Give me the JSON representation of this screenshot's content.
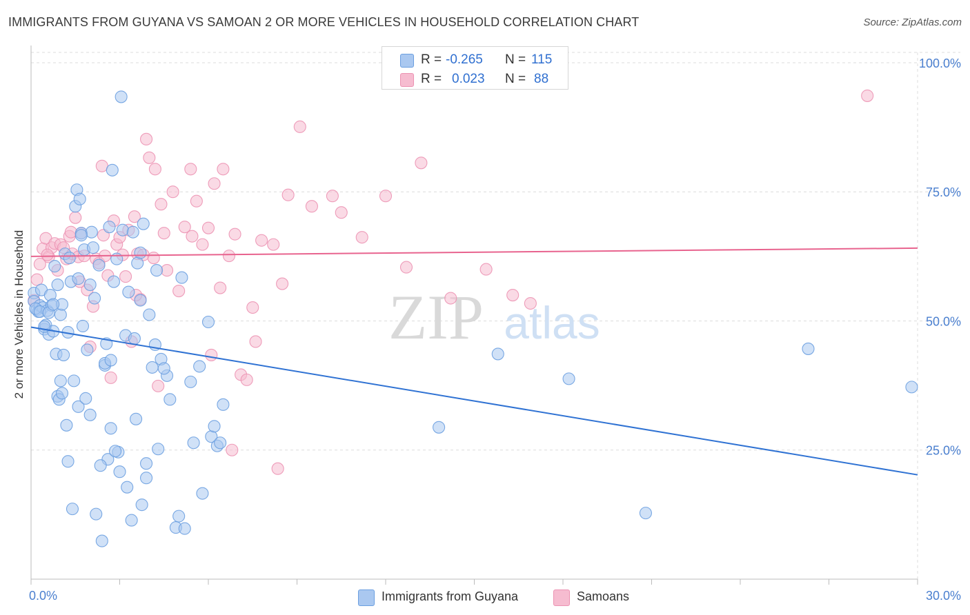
{
  "title": "IMMIGRANTS FROM GUYANA VS SAMOAN 2 OR MORE VEHICLES IN HOUSEHOLD CORRELATION CHART",
  "source": "Source: ZipAtlas.com",
  "watermark": {
    "zip": "ZIP",
    "atlas": "atlas"
  },
  "colors": {
    "blue_fill": "#aac8f0",
    "blue_stroke": "#6a9ee0",
    "blue_line": "#2f72d3",
    "pink_fill": "#f6bcd0",
    "pink_stroke": "#ec92b2",
    "pink_line": "#e8638e",
    "tick_label": "#4a7fcf",
    "grid": "#dcdcdc"
  },
  "legend_top": {
    "rows": [
      {
        "r_label": "R =",
        "r_value": "-0.265",
        "n_label": "N =",
        "n_value": "115",
        "color": "blue"
      },
      {
        "r_label": "R =",
        "r_value": "0.023",
        "n_label": "N =",
        "n_value": "88",
        "color": "pink"
      }
    ]
  },
  "legend_bottom": [
    {
      "label": "Immigrants from Guyana",
      "color": "blue"
    },
    {
      "label": "Samoans",
      "color": "pink"
    }
  ],
  "chart_data": {
    "type": "scatter",
    "title": "IMMIGRANTS FROM GUYANA VS SAMOAN 2 OR MORE VEHICLES IN HOUSEHOLD CORRELATION CHART",
    "xlabel": "",
    "ylabel": "2 or more Vehicles in Household",
    "xlim": [
      0,
      30
    ],
    "ylim": [
      0,
      102
    ],
    "x_tick_labels": [
      "0.0%",
      "30.0%"
    ],
    "y_ticks": [
      25,
      50,
      75,
      100
    ],
    "y_tick_labels": [
      "25.0%",
      "50.0%",
      "75.0%",
      "100.0%"
    ],
    "grid": true,
    "legend_position": "top-center",
    "series": [
      {
        "name": "Immigrants from Guyana",
        "color": "#6a9ee0",
        "trend": {
          "x": [
            0,
            30
          ],
          "y": [
            48.8,
            20.2
          ]
        },
        "points": [
          [
            0.1,
            55.4
          ],
          [
            0.1,
            53.8
          ],
          [
            0.2,
            52.2
          ],
          [
            0.25,
            51.8
          ],
          [
            0.3,
            53
          ],
          [
            0.35,
            56
          ],
          [
            0.4,
            52.6
          ],
          [
            0.45,
            48.4
          ],
          [
            0.5,
            49.2
          ],
          [
            0.55,
            52
          ],
          [
            0.6,
            47.4
          ],
          [
            0.65,
            55
          ],
          [
            0.7,
            53
          ],
          [
            0.75,
            48
          ],
          [
            0.8,
            60.6
          ],
          [
            0.85,
            43.6
          ],
          [
            0.9,
            35.4
          ],
          [
            0.95,
            34.8
          ],
          [
            1.0,
            51.2
          ],
          [
            1.05,
            53.2
          ],
          [
            1.1,
            43.4
          ],
          [
            1.15,
            63
          ],
          [
            1.2,
            29.8
          ],
          [
            1.25,
            22.8
          ],
          [
            1.3,
            62.2
          ],
          [
            1.35,
            57.6
          ],
          [
            1.4,
            13.6
          ],
          [
            1.5,
            72.2
          ],
          [
            1.55,
            75.4
          ],
          [
            1.6,
            58.2
          ],
          [
            1.65,
            73.6
          ],
          [
            1.7,
            67
          ],
          [
            1.75,
            49
          ],
          [
            1.8,
            63.8
          ],
          [
            1.9,
            44.4
          ],
          [
            2.0,
            31.8
          ],
          [
            2.05,
            67.2
          ],
          [
            2.1,
            64.2
          ],
          [
            2.15,
            54.4
          ],
          [
            2.2,
            12.6
          ],
          [
            2.3,
            60.8
          ],
          [
            2.4,
            7.4
          ],
          [
            2.5,
            41.4
          ],
          [
            2.55,
            45.6
          ],
          [
            2.6,
            23.2
          ],
          [
            2.65,
            68.2
          ],
          [
            2.7,
            29.2
          ],
          [
            2.75,
            79.2
          ],
          [
            2.8,
            57.6
          ],
          [
            2.9,
            62
          ],
          [
            2.95,
            24.6
          ],
          [
            3.1,
            67.6
          ],
          [
            3.2,
            47.2
          ],
          [
            3.25,
            17.8
          ],
          [
            3.3,
            55.6
          ],
          [
            3.4,
            11.4
          ],
          [
            3.45,
            67.2
          ],
          [
            3.5,
            46.6
          ],
          [
            3.55,
            31
          ],
          [
            3.7,
            54
          ],
          [
            3.75,
            14.4
          ],
          [
            3.8,
            68.8
          ],
          [
            3.9,
            22.4
          ],
          [
            4.0,
            51.2
          ],
          [
            4.1,
            41
          ],
          [
            4.2,
            45.4
          ],
          [
            4.25,
            59.8
          ],
          [
            4.3,
            25.2
          ],
          [
            4.4,
            42.6
          ],
          [
            4.6,
            39.4
          ],
          [
            4.7,
            34.8
          ],
          [
            4.9,
            10
          ],
          [
            5.0,
            12.2
          ],
          [
            5.1,
            58.4
          ],
          [
            5.4,
            38.2
          ],
          [
            5.5,
            26.4
          ],
          [
            5.7,
            41.2
          ],
          [
            5.8,
            16.6
          ],
          [
            6.0,
            49.8
          ],
          [
            6.1,
            27.6
          ],
          [
            6.2,
            29.6
          ],
          [
            6.3,
            25.8
          ],
          [
            6.5,
            33.8
          ],
          [
            0.15,
            52.4
          ],
          [
            0.3,
            51.8
          ],
          [
            0.45,
            48.9
          ],
          [
            0.6,
            51.6
          ],
          [
            0.75,
            53.2
          ],
          [
            0.9,
            57
          ],
          [
            1.0,
            38.4
          ],
          [
            1.05,
            36
          ],
          [
            1.25,
            47.8
          ],
          [
            1.45,
            38.4
          ],
          [
            1.6,
            33.4
          ],
          [
            1.7,
            66.6
          ],
          [
            2.0,
            57
          ],
          [
            2.35,
            22
          ],
          [
            2.5,
            41.8
          ],
          [
            2.7,
            42.4
          ],
          [
            2.85,
            24.8
          ],
          [
            3.0,
            20.8
          ],
          [
            3.6,
            61.2
          ],
          [
            3.7,
            63.2
          ],
          [
            3.9,
            19.6
          ],
          [
            4.5,
            40.8
          ],
          [
            5.2,
            9.8
          ],
          [
            6.4,
            26.4
          ],
          [
            3.05,
            93.4
          ],
          [
            13.8,
            29.4
          ],
          [
            15.8,
            43.6
          ],
          [
            18.2,
            38.8
          ],
          [
            20.8,
            12.8
          ],
          [
            26.3,
            44.6
          ],
          [
            29.8,
            37.2
          ],
          [
            1.85,
            35
          ]
        ]
      },
      {
        "name": "Samoans",
        "color": "#ec92b2",
        "trend": {
          "x": [
            0,
            30
          ],
          "y": [
            62.5,
            64.1
          ]
        },
        "points": [
          [
            0.1,
            54
          ],
          [
            0.2,
            58
          ],
          [
            0.3,
            61
          ],
          [
            0.4,
            64
          ],
          [
            0.5,
            66
          ],
          [
            0.6,
            62.4
          ],
          [
            0.7,
            64.2
          ],
          [
            0.8,
            65
          ],
          [
            0.9,
            59.8
          ],
          [
            1.0,
            64.8
          ],
          [
            1.1,
            64.2
          ],
          [
            1.2,
            62
          ],
          [
            1.3,
            66.4
          ],
          [
            1.4,
            63
          ],
          [
            1.5,
            70
          ],
          [
            1.6,
            62.4
          ],
          [
            1.7,
            67
          ],
          [
            1.8,
            62.6
          ],
          [
            1.9,
            56
          ],
          [
            2.0,
            45
          ],
          [
            2.1,
            52.8
          ],
          [
            2.2,
            62
          ],
          [
            2.3,
            61.2
          ],
          [
            2.4,
            80
          ],
          [
            2.5,
            62.6
          ],
          [
            2.6,
            58.8
          ],
          [
            2.7,
            39
          ],
          [
            2.8,
            69.4
          ],
          [
            2.9,
            64.8
          ],
          [
            3.0,
            66.2
          ],
          [
            3.1,
            62.8
          ],
          [
            3.2,
            58.6
          ],
          [
            3.3,
            67.6
          ],
          [
            3.4,
            46
          ],
          [
            3.5,
            70.2
          ],
          [
            3.6,
            63
          ],
          [
            3.7,
            54.2
          ],
          [
            3.8,
            62.8
          ],
          [
            3.9,
            85.2
          ],
          [
            4.0,
            81.6
          ],
          [
            4.2,
            79.4
          ],
          [
            4.3,
            37.4
          ],
          [
            4.4,
            72.6
          ],
          [
            4.5,
            67
          ],
          [
            4.6,
            59.8
          ],
          [
            4.8,
            75
          ],
          [
            5.0,
            55.8
          ],
          [
            5.2,
            68.2
          ],
          [
            5.4,
            79.4
          ],
          [
            5.6,
            73.2
          ],
          [
            5.8,
            64.8
          ],
          [
            6.0,
            68
          ],
          [
            6.2,
            76.6
          ],
          [
            6.4,
            56.4
          ],
          [
            6.5,
            79.4
          ],
          [
            6.7,
            62.6
          ],
          [
            6.9,
            66.8
          ],
          [
            7.1,
            39.6
          ],
          [
            7.3,
            38.6
          ],
          [
            7.5,
            52.6
          ],
          [
            7.8,
            65.6
          ],
          [
            8.2,
            64.8
          ],
          [
            8.5,
            57.2
          ],
          [
            8.7,
            74.4
          ],
          [
            9.1,
            87.6
          ],
          [
            9.5,
            72.2
          ],
          [
            10.2,
            74.2
          ],
          [
            10.5,
            71
          ],
          [
            11.2,
            66.2
          ],
          [
            12,
            74.2
          ],
          [
            12.7,
            60.4
          ],
          [
            13.2,
            80.6
          ],
          [
            14.2,
            54.4
          ],
          [
            15.4,
            60
          ],
          [
            16.3,
            55
          ],
          [
            16.9,
            53.4
          ],
          [
            28.3,
            93.6
          ],
          [
            0.55,
            62.8
          ],
          [
            1.35,
            67.2
          ],
          [
            1.65,
            57.6
          ],
          [
            2.45,
            66.6
          ],
          [
            3.55,
            55
          ],
          [
            5.45,
            66.4
          ],
          [
            6.1,
            43.4
          ],
          [
            7.6,
            46
          ],
          [
            8.35,
            21.4
          ],
          [
            6.8,
            25
          ],
          [
            4.15,
            62.2
          ]
        ]
      }
    ]
  }
}
